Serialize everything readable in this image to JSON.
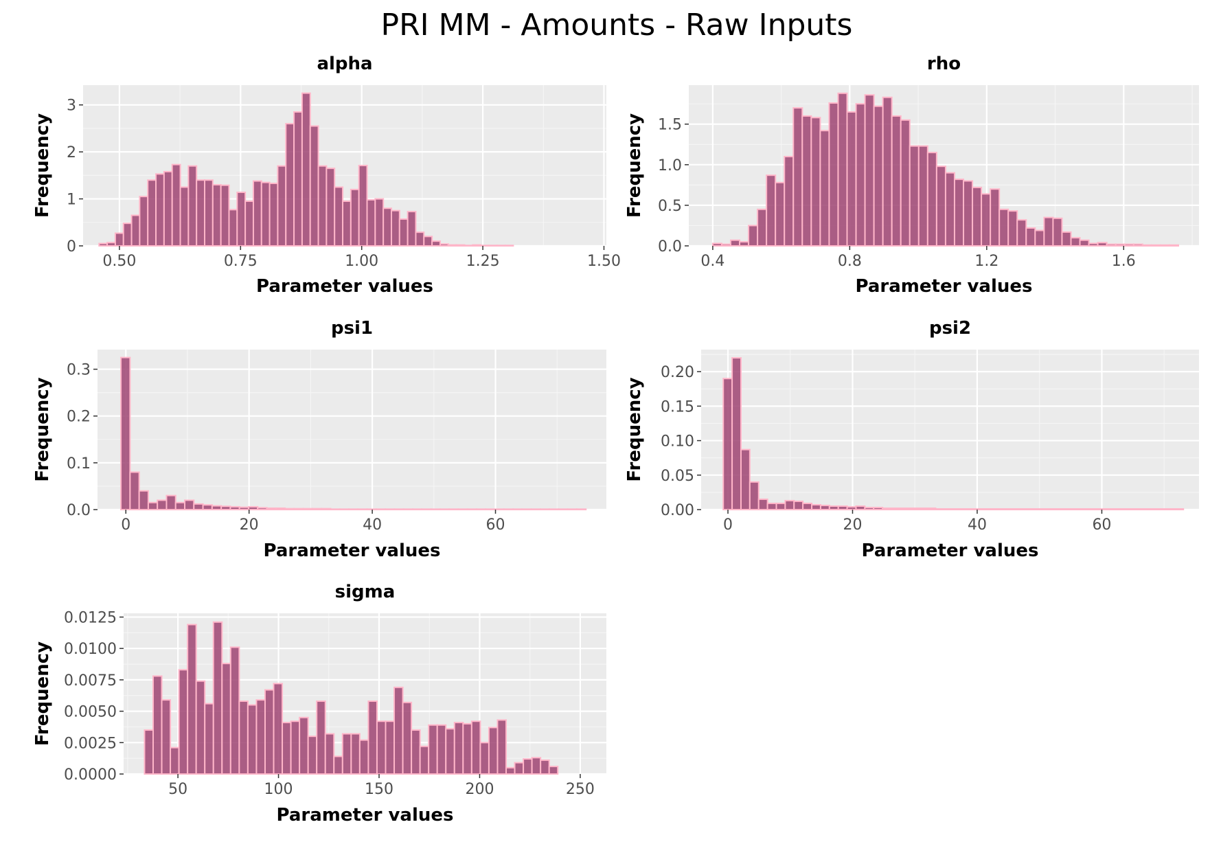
{
  "title": "PRI MM - Amounts - Raw Inputs",
  "colors": {
    "panel_bg": "#ebebeb",
    "grid_major": "#ffffff",
    "grid_minor": "#f5f5f5",
    "bar_fill": "#9b3d6c",
    "bar_outline": "#ffb6c9",
    "tick": "#333333",
    "tick_label": "#4d4d4d"
  },
  "chart_data": [
    {
      "type": "bar",
      "title": "alpha",
      "xlabel": "Parameter values",
      "ylabel": "Frequency",
      "grid": true,
      "xlim": [
        0.425,
        1.505
      ],
      "ylim": [
        0,
        3.42
      ],
      "xticks": [
        0.5,
        0.75,
        1.0,
        1.25,
        1.5
      ],
      "xtick_labels": [
        "0.50",
        "0.75",
        "1.00",
        "1.25",
        "1.50"
      ],
      "yticks": [
        0,
        1,
        2,
        3
      ],
      "ytick_labels": [
        "0",
        "1",
        "2",
        "3"
      ],
      "bin_start": 0.458,
      "bin_width": 0.01676,
      "values": [
        0.05,
        0.07,
        0.27,
        0.48,
        0.65,
        1.05,
        1.4,
        1.53,
        1.58,
        1.73,
        1.25,
        1.7,
        1.4,
        1.4,
        1.3,
        1.29,
        0.77,
        1.14,
        0.95,
        1.38,
        1.35,
        1.33,
        1.7,
        2.6,
        2.85,
        3.25,
        2.55,
        1.7,
        1.65,
        1.25,
        0.95,
        1.2,
        1.71,
        0.98,
        1.0,
        0.8,
        0.75,
        0.57,
        0.73,
        0.29,
        0.2,
        0.1,
        0.04,
        0.02,
        0.02,
        0.01,
        0.02,
        0.01,
        0.01,
        0.01,
        0.01
      ]
    },
    {
      "type": "bar",
      "title": "rho",
      "xlabel": "Parameter values",
      "ylabel": "Frequency",
      "grid": true,
      "xlim": [
        0.33,
        1.82
      ],
      "ylim": [
        0,
        1.98
      ],
      "xticks": [
        0.4,
        0.8,
        1.2,
        1.6
      ],
      "xtick_labels": [
        "0.4",
        "0.8",
        "1.2",
        "1.6"
      ],
      "yticks": [
        0,
        0.5,
        1.0,
        1.5
      ],
      "ytick_labels": [
        "0.0",
        "0.5",
        "1.0",
        "1.5"
      ],
      "bin_start": 0.4,
      "bin_width": 0.02615,
      "values": [
        0.03,
        0.02,
        0.07,
        0.05,
        0.25,
        0.45,
        0.87,
        0.78,
        1.1,
        1.7,
        1.6,
        1.58,
        1.42,
        1.76,
        1.88,
        1.65,
        1.75,
        1.86,
        1.72,
        1.83,
        1.6,
        1.55,
        1.23,
        1.23,
        1.15,
        0.98,
        0.9,
        0.82,
        0.8,
        0.72,
        0.64,
        0.7,
        0.45,
        0.43,
        0.32,
        0.22,
        0.19,
        0.35,
        0.34,
        0.17,
        0.1,
        0.07,
        0.03,
        0.04,
        0.02,
        0.02,
        0.02,
        0.02,
        0.01,
        0.01,
        0.01,
        0.01
      ]
    },
    {
      "type": "bar",
      "title": "psi1",
      "xlabel": "Parameter values",
      "ylabel": "Frequency",
      "grid": true,
      "xlim": [
        -4.6,
        78
      ],
      "ylim": [
        0,
        0.342
      ],
      "xticks": [
        0,
        20,
        40,
        60
      ],
      "xtick_labels": [
        "0",
        "20",
        "40",
        "60"
      ],
      "yticks": [
        0,
        0.1,
        0.2,
        0.3
      ],
      "ytick_labels": [
        "0.0",
        "0.1",
        "0.2",
        "0.3"
      ],
      "bin_start": -0.8,
      "bin_width": 1.48,
      "values": [
        0.325,
        0.08,
        0.04,
        0.015,
        0.02,
        0.03,
        0.015,
        0.02,
        0.012,
        0.01,
        0.008,
        0.007,
        0.006,
        0.005,
        0.006,
        0.004,
        0.003,
        0.003,
        0.002,
        0.002,
        0.002,
        0.002,
        0.002,
        0.001,
        0.001,
        0.001,
        0.001,
        0.001,
        0.001,
        0.001,
        0.001,
        0.001,
        0.001,
        0.001,
        0.001,
        0.001,
        0.001,
        0.001,
        0.001,
        0.001,
        0.001,
        0.001,
        0.001,
        0.001,
        0.001,
        0.001,
        0.001,
        0.001,
        0.001,
        0.001,
        0.001
      ]
    },
    {
      "type": "bar",
      "title": "psi2",
      "xlabel": "Parameter values",
      "ylabel": "Frequency",
      "grid": true,
      "xlim": [
        -4.3,
        75.6
      ],
      "ylim": [
        0,
        0.232
      ],
      "xticks": [
        0,
        20,
        40,
        60
      ],
      "xtick_labels": [
        "0",
        "20",
        "40",
        "60"
      ],
      "yticks": [
        0,
        0.05,
        0.1,
        0.15,
        0.2
      ],
      "ytick_labels": [
        "0.00",
        "0.05",
        "0.10",
        "0.15",
        "0.20"
      ],
      "bin_start": -0.75,
      "bin_width": 1.42,
      "values": [
        0.19,
        0.22,
        0.087,
        0.04,
        0.015,
        0.009,
        0.009,
        0.013,
        0.012,
        0.009,
        0.007,
        0.006,
        0.005,
        0.005,
        0.004,
        0.005,
        0.003,
        0.003,
        0.002,
        0.002,
        0.002,
        0.002,
        0.002,
        0.002,
        0.001,
        0.001,
        0.001,
        0.001,
        0.001,
        0.001,
        0.001,
        0.001,
        0.001,
        0.001,
        0.001,
        0.001,
        0.001,
        0.001,
        0.001,
        0.001,
        0.001,
        0.001,
        0.001,
        0.001,
        0.001,
        0.001,
        0.001,
        0.001,
        0.001,
        0.001,
        0.001,
        0.001
      ]
    },
    {
      "type": "bar",
      "title": "sigma",
      "xlabel": "Parameter values",
      "ylabel": "Frequency",
      "grid": true,
      "xlim": [
        23,
        263
      ],
      "ylim": [
        0,
        0.0128
      ],
      "xticks": [
        50,
        100,
        150,
        200,
        250
      ],
      "xtick_labels": [
        "50",
        "100",
        "150",
        "200",
        "250"
      ],
      "yticks": [
        0,
        0.0025,
        0.005,
        0.0075,
        0.01,
        0.0125
      ],
      "ytick_labels": [
        "0.0000",
        "0.0025",
        "0.0050",
        "0.0075",
        "0.0100",
        "0.0125"
      ],
      "bin_start": 33.4,
      "bin_width": 4.28,
      "values": [
        0.0035,
        0.0078,
        0.0059,
        0.0021,
        0.0083,
        0.0119,
        0.0074,
        0.0056,
        0.0121,
        0.0088,
        0.0101,
        0.0058,
        0.0055,
        0.0059,
        0.0067,
        0.0072,
        0.0041,
        0.0042,
        0.0045,
        0.003,
        0.0058,
        0.0032,
        0.0014,
        0.0032,
        0.0032,
        0.0027,
        0.0058,
        0.0042,
        0.0042,
        0.0069,
        0.0057,
        0.0035,
        0.0022,
        0.0039,
        0.0039,
        0.0036,
        0.0041,
        0.004,
        0.0042,
        0.0025,
        0.0037,
        0.0043,
        0.0005,
        0.0009,
        0.0012,
        0.0013,
        0.0011,
        0.0006
      ]
    }
  ]
}
